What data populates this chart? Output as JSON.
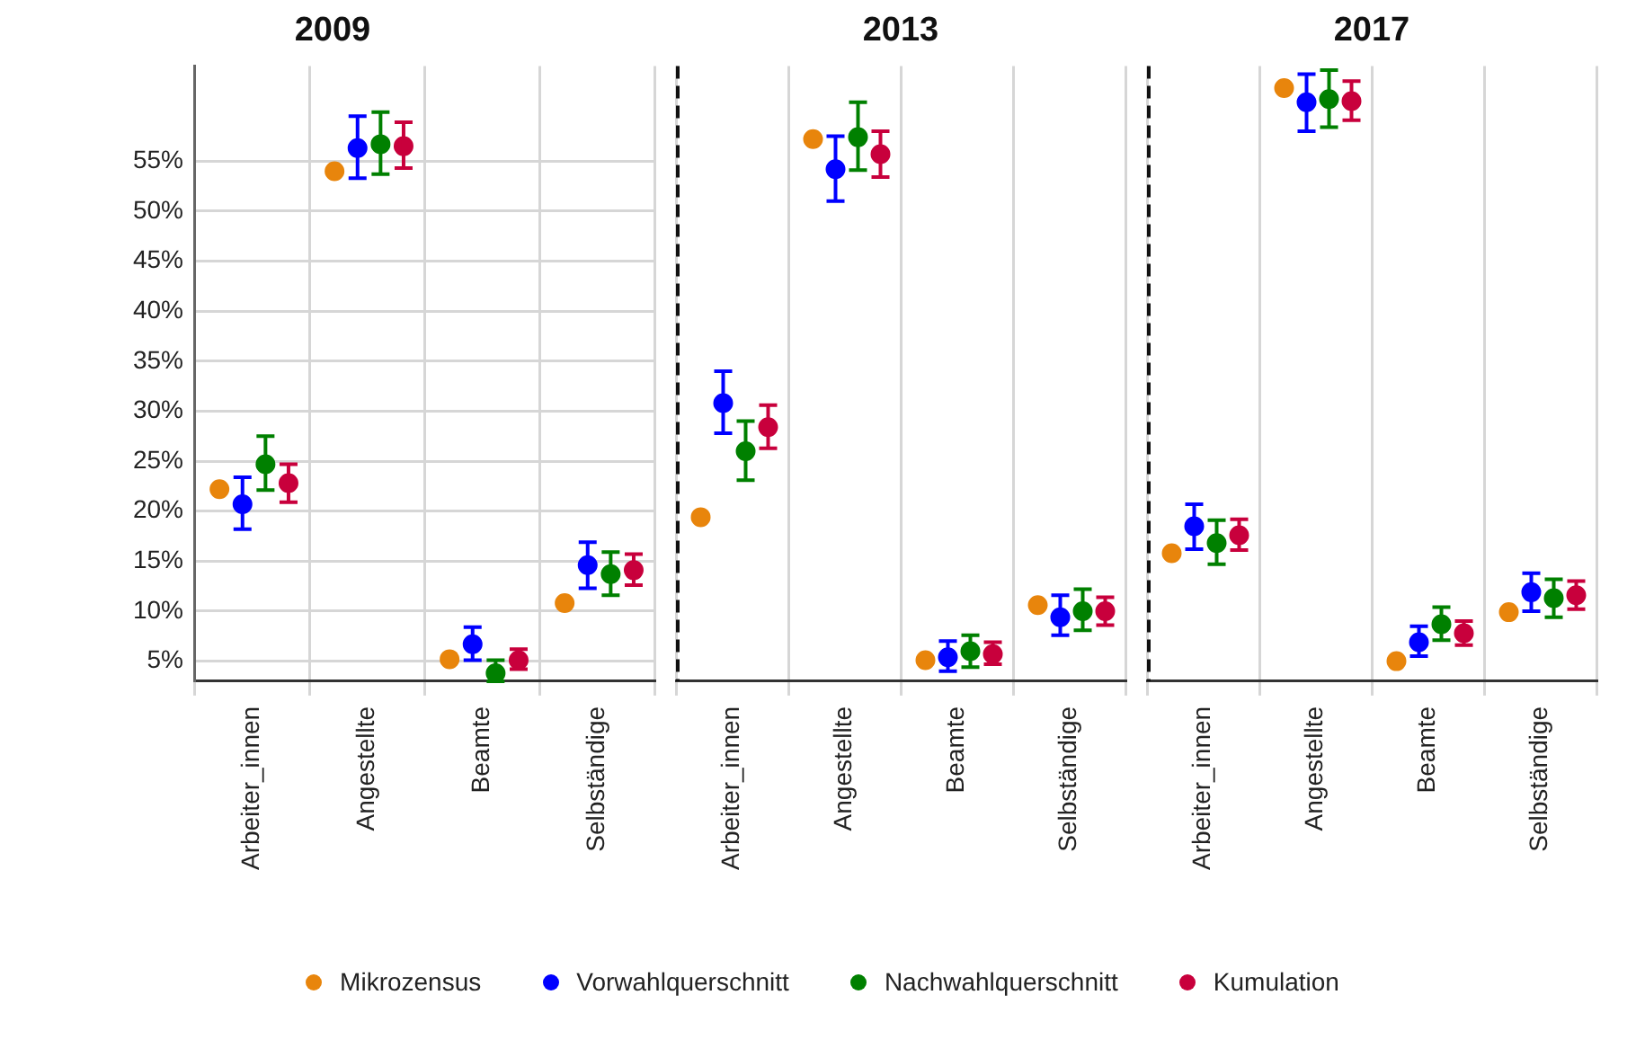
{
  "chart_data": [
    {
      "type": "scatter",
      "title": "2009",
      "categories": [
        "Arbeiter_innen",
        "Angestellte",
        "Beamte",
        "Selbständige"
      ],
      "ylim": [
        3,
        64.5
      ],
      "yticks": [
        {
          "value": 5,
          "label": "5%"
        },
        {
          "value": 10,
          "label": "10%"
        },
        {
          "value": 15,
          "label": "15%"
        },
        {
          "value": 20,
          "label": "20%"
        },
        {
          "value": 25,
          "label": "25%"
        },
        {
          "value": 30,
          "label": "30%"
        },
        {
          "value": 35,
          "label": "35%"
        },
        {
          "value": 40,
          "label": "40%"
        },
        {
          "value": 45,
          "label": "45%"
        },
        {
          "value": 50,
          "label": "50%"
        },
        {
          "value": 55,
          "label": "55%"
        }
      ],
      "grid": true,
      "marker": "circle",
      "legend": "bottom",
      "series": [
        {
          "name": "Mikrozensus",
          "color": "#e8850c",
          "values": [
            22.2,
            54.0,
            5.2,
            10.8
          ]
        },
        {
          "name": "Vorwahlquerschnitt",
          "color": "#0000ff",
          "values": [
            20.7,
            56.3,
            6.7,
            14.6
          ],
          "errors": [
            [
              18.2,
              23.4
            ],
            [
              53.3,
              59.5
            ],
            [
              5.1,
              8.4
            ],
            [
              12.3,
              16.9
            ]
          ]
        },
        {
          "name": "Nachwahlquerschnitt",
          "color": "#008000",
          "values": [
            24.7,
            56.7,
            3.8,
            13.7
          ],
          "errors": [
            [
              22.1,
              27.5
            ],
            [
              53.7,
              59.9
            ],
            [
              3.0,
              5.1
            ],
            [
              11.6,
              15.9
            ]
          ]
        },
        {
          "name": "Kumulation",
          "color": "#c8003c",
          "values": [
            22.8,
            56.5,
            5.1,
            14.1
          ],
          "errors": [
            [
              20.9,
              24.7
            ],
            [
              54.3,
              58.9
            ],
            [
              4.2,
              6.2
            ],
            [
              12.6,
              15.7
            ]
          ]
        }
      ]
    },
    {
      "type": "scatter",
      "title": "2013",
      "categories": [
        "Arbeiter_innen",
        "Angestellte",
        "Beamte",
        "Selbständige"
      ],
      "ylim": [
        3,
        64.5
      ],
      "yticks": [
        {
          "value": 5,
          "label": null
        },
        {
          "value": 10,
          "label": null
        },
        {
          "value": 15,
          "label": null
        },
        {
          "value": 20,
          "label": null
        },
        {
          "value": 25,
          "label": null
        },
        {
          "value": 30,
          "label": null
        },
        {
          "value": 35,
          "label": null
        },
        {
          "value": 40,
          "label": null
        },
        {
          "value": 45,
          "label": null
        },
        {
          "value": 50,
          "label": null
        },
        {
          "value": 55,
          "label": null
        }
      ],
      "grid": true,
      "marker": "circle",
      "tick_labels": "x",
      "series": [
        {
          "color": "#e8850c",
          "values": [
            19.4,
            57.2,
            5.1,
            10.6
          ]
        },
        {
          "color": "#0000ff",
          "values": [
            30.8,
            54.2,
            5.4,
            9.4
          ],
          "errors": [
            [
              27.8,
              34.0
            ],
            [
              51.0,
              57.5
            ],
            [
              4.0,
              7.0
            ],
            [
              7.6,
              11.6
            ]
          ]
        },
        {
          "color": "#008000",
          "values": [
            26.0,
            57.4,
            6.0,
            10.0
          ],
          "errors": [
            [
              23.1,
              29.0
            ],
            [
              54.1,
              60.9
            ],
            [
              4.4,
              7.6
            ],
            [
              8.1,
              12.2
            ]
          ]
        },
        {
          "color": "#c8003c",
          "values": [
            28.4,
            55.7,
            5.7,
            10.0
          ],
          "errors": [
            [
              26.3,
              30.6
            ],
            [
              53.4,
              58.0
            ],
            [
              4.7,
              6.9
            ],
            [
              8.6,
              11.4
            ]
          ]
        }
      ]
    },
    {
      "type": "scatter",
      "title": "2017",
      "categories": [
        "Arbeiter_innen",
        "Angestellte",
        "Beamte",
        "Selbständige"
      ],
      "ylim": [
        3,
        64.5
      ],
      "yticks": [
        {
          "value": 5,
          "label": null
        },
        {
          "value": 10,
          "label": null
        },
        {
          "value": 15,
          "label": null
        },
        {
          "value": 20,
          "label": null
        },
        {
          "value": 25,
          "label": null
        },
        {
          "value": 30,
          "label": null
        },
        {
          "value": 35,
          "label": null
        },
        {
          "value": 40,
          "label": null
        },
        {
          "value": 45,
          "label": null
        },
        {
          "value": 50,
          "label": null
        },
        {
          "value": 55,
          "label": null
        }
      ],
      "grid": true,
      "marker": "circle",
      "tick_labels": "x",
      "series": [
        {
          "color": "#e8850c",
          "values": [
            15.8,
            62.3,
            5.0,
            9.9
          ]
        },
        {
          "color": "#0000ff",
          "values": [
            18.5,
            60.9,
            6.9,
            11.9
          ],
          "errors": [
            [
              16.2,
              20.7
            ],
            [
              58.0,
              63.7
            ],
            [
              5.5,
              8.5
            ],
            [
              10.0,
              13.8
            ]
          ]
        },
        {
          "color": "#008000",
          "values": [
            16.8,
            61.2,
            8.7,
            11.3
          ],
          "errors": [
            [
              14.7,
              19.1
            ],
            [
              58.4,
              64.1
            ],
            [
              7.1,
              10.4
            ],
            [
              9.4,
              13.2
            ]
          ]
        },
        {
          "color": "#c8003c",
          "values": [
            17.6,
            61.0,
            7.8,
            11.6
          ],
          "errors": [
            [
              16.1,
              19.2
            ],
            [
              59.1,
              63.0
            ],
            [
              6.6,
              9.0
            ],
            [
              10.2,
              13.0
            ]
          ]
        }
      ]
    }
  ]
}
